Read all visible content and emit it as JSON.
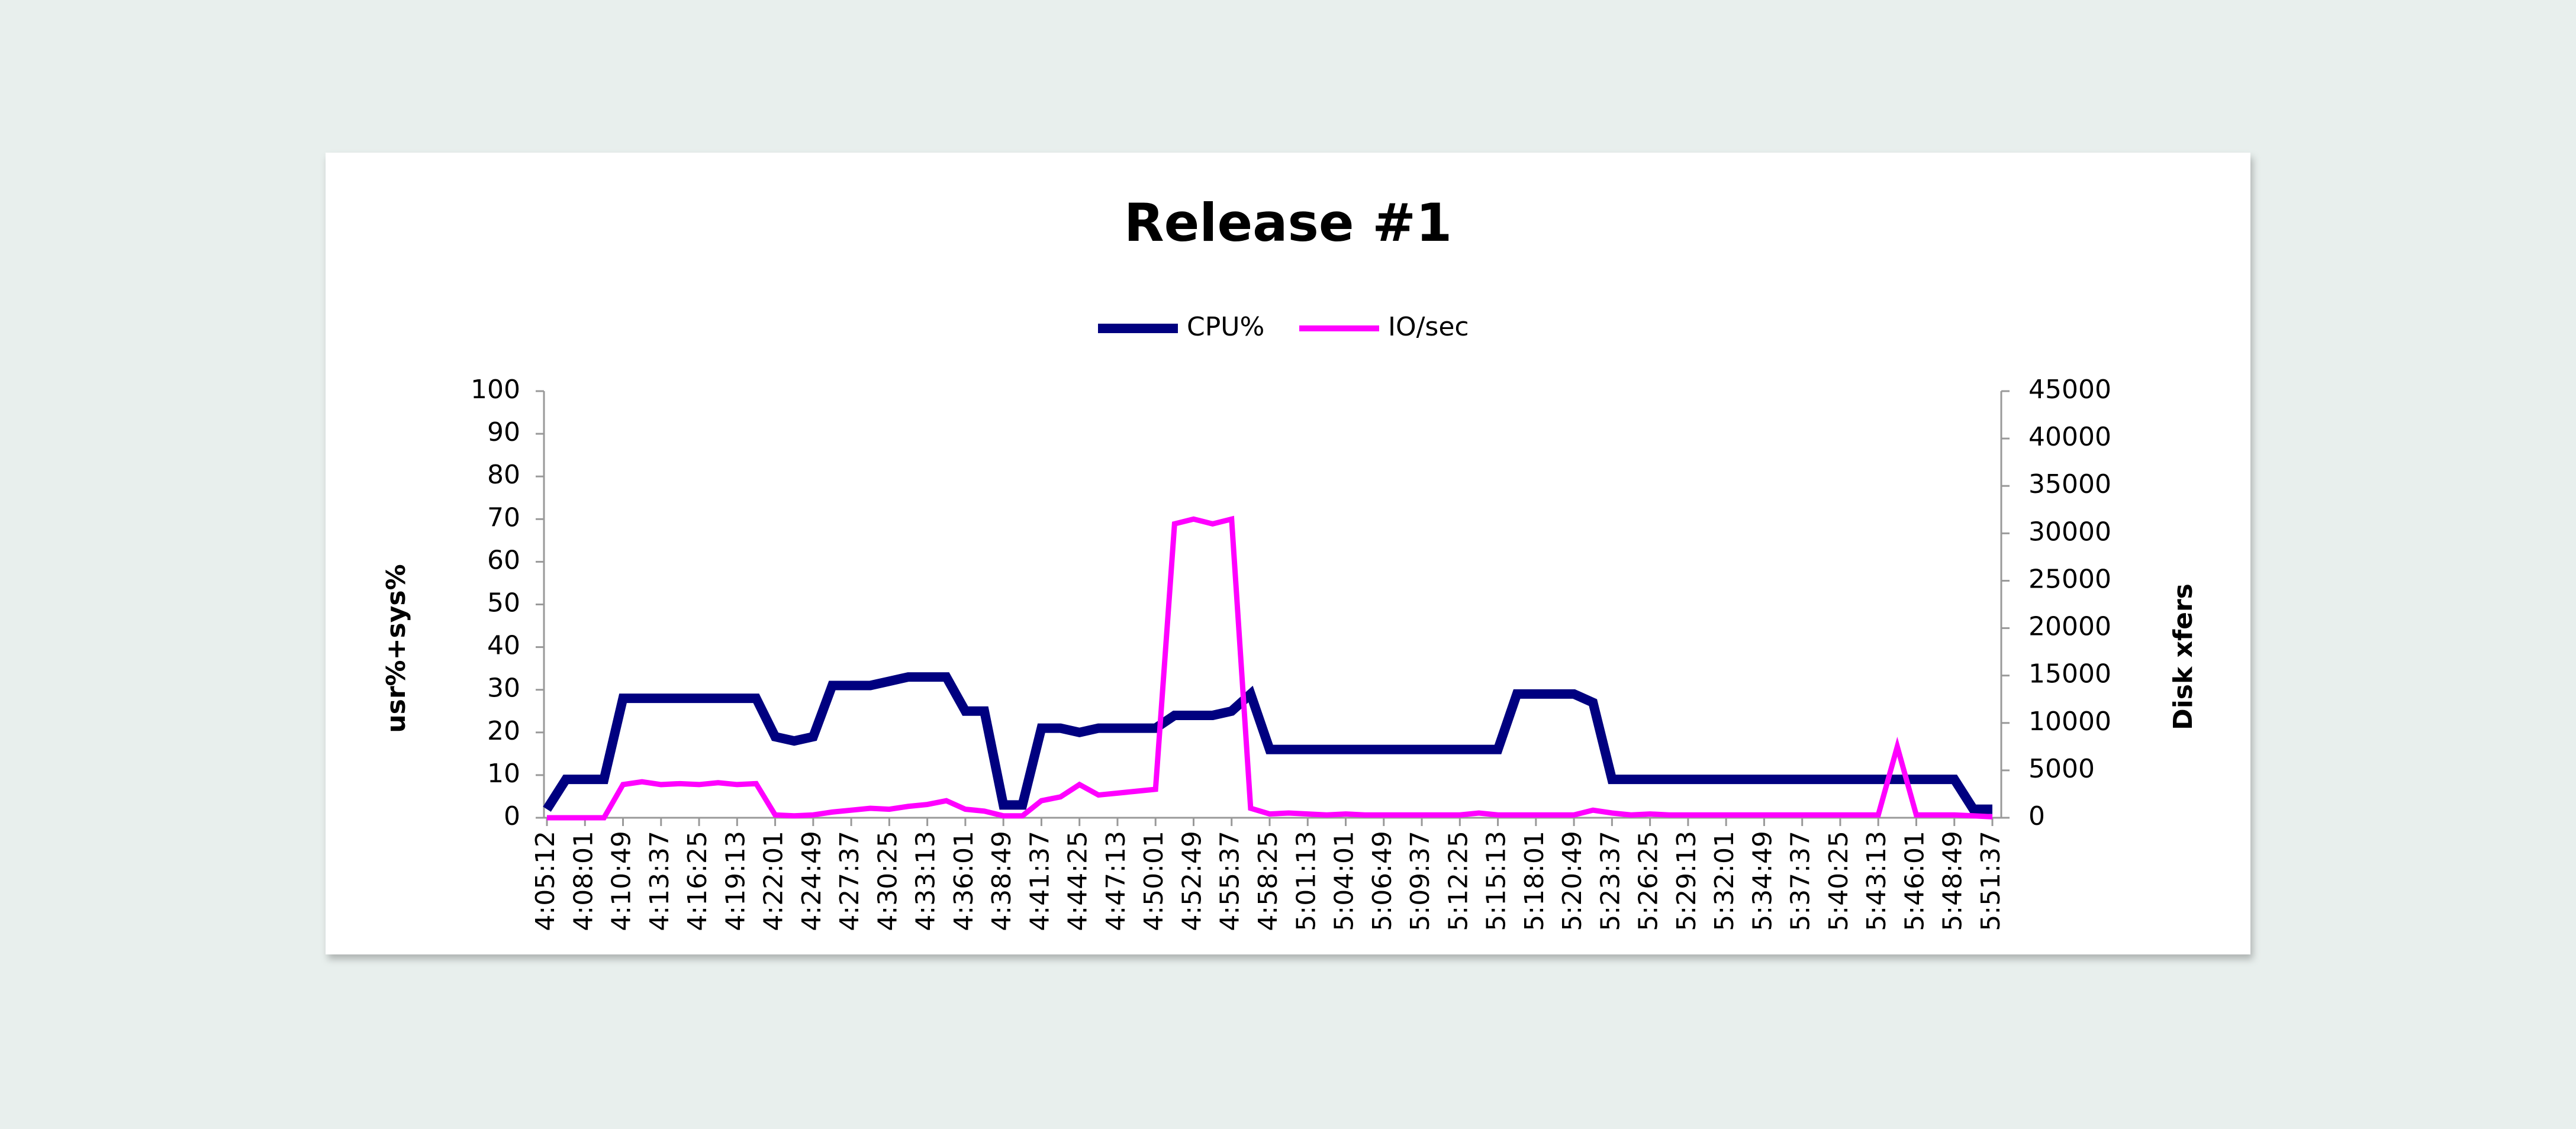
{
  "chart_data": {
    "type": "line",
    "title": "Release #1",
    "categories": [
      "4:05:12",
      null,
      "4:08:01",
      null,
      "4:10:49",
      null,
      "4:13:37",
      null,
      "4:16:25",
      null,
      "4:19:13",
      null,
      "4:22:01",
      null,
      "4:24:49",
      null,
      "4:27:37",
      null,
      "4:30:25",
      null,
      "4:33:13",
      null,
      "4:36:01",
      null,
      "4:38:49",
      null,
      "4:41:37",
      null,
      "4:44:25",
      null,
      "4:47:13",
      null,
      "4:50:01",
      null,
      "4:52:49",
      null,
      "4:55:37",
      null,
      "4:58:25",
      null,
      "5:01:13",
      null,
      "5:04:01",
      null,
      "5:06:49",
      null,
      "5:09:37",
      null,
      "5:12:25",
      null,
      "5:15:13",
      null,
      "5:18:01",
      null,
      "5:20:49",
      null,
      "5:23:37",
      null,
      "5:26:25",
      null,
      "5:29:13",
      null,
      "5:32:01",
      null,
      "5:34:49",
      null,
      "5:37:37",
      null,
      "5:40:25",
      null,
      "5:43:13",
      null,
      "5:46:01",
      null,
      "5:48:49",
      null,
      "5:51:37"
    ],
    "series": [
      {
        "name": "CPU%",
        "color": "#000080",
        "values": [
          2,
          9,
          9,
          9,
          28,
          28,
          28,
          28,
          28,
          28,
          28,
          28,
          19,
          18,
          19,
          31,
          31,
          31,
          32,
          33,
          33,
          33,
          25,
          25,
          3,
          3,
          21,
          21,
          20,
          21,
          21,
          21,
          21,
          24,
          24,
          24,
          25,
          29,
          16,
          16,
          16,
          16,
          16,
          16,
          16,
          16,
          16,
          16,
          16,
          16,
          16,
          29,
          29,
          29,
          29,
          27,
          9,
          9,
          9,
          9,
          9,
          9,
          9,
          9,
          9,
          9,
          9,
          9,
          9,
          9,
          9,
          9,
          9,
          9,
          9,
          2,
          2
        ]
      },
      {
        "name": "IO/sec",
        "color": "#ff00ff",
        "axis": "y2",
        "values": [
          0,
          0,
          0,
          0,
          3500,
          3800,
          3500,
          3600,
          3500,
          3700,
          3500,
          3600,
          300,
          200,
          300,
          600,
          800,
          1000,
          900,
          1200,
          1400,
          1800,
          900,
          700,
          200,
          200,
          1800,
          2200,
          3500,
          2400,
          2600,
          2800,
          3000,
          31000,
          31500,
          31000,
          31500,
          1000,
          400,
          500,
          400,
          300,
          400,
          300,
          300,
          300,
          300,
          300,
          300,
          500,
          300,
          300,
          300,
          300,
          300,
          800,
          500,
          300,
          400,
          300,
          300,
          300,
          300,
          300,
          300,
          300,
          300,
          300,
          300,
          300,
          300,
          7500,
          300,
          300,
          300,
          200,
          100
        ]
      }
    ],
    "y_label": "usr%+sys%",
    "y2_label": "Disk xfers",
    "ylim": [
      0,
      100
    ],
    "yticks": [
      0,
      10,
      20,
      30,
      40,
      50,
      60,
      70,
      80,
      90,
      100
    ],
    "y2lim": [
      0,
      45000
    ],
    "y2ticks": [
      0,
      5000,
      10000,
      15000,
      20000,
      25000,
      30000,
      35000,
      40000,
      45000
    ],
    "legend": "top",
    "grid": false
  }
}
